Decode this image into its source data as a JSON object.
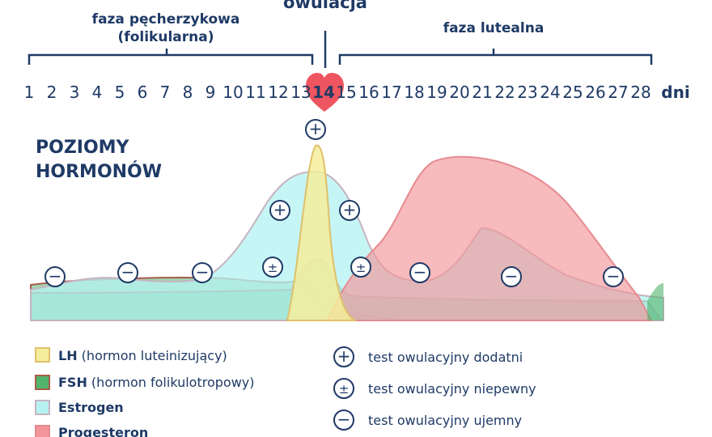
{
  "phases": {
    "follicular_line1": "faza pęcherzykowa",
    "follicular_line2": "(folikularna)",
    "ovulation": "owulacja",
    "luteal": "faza lutealna"
  },
  "days": [
    "1",
    "2",
    "3",
    "4",
    "5",
    "6",
    "7",
    "8",
    "9",
    "10",
    "11",
    "12",
    "13",
    "14",
    "15",
    "16",
    "17",
    "18",
    "19",
    "20",
    "21",
    "22",
    "23",
    "24",
    "25",
    "26",
    "27",
    "28"
  ],
  "days_unit": "dni",
  "ovulation_day": "14",
  "section_title_line1": "POZIOMY",
  "section_title_line2": "HORMONÓW",
  "colors": {
    "lh": "#f4ed9b",
    "fsh": "#52b36b",
    "estrogen": "#b6f2f2",
    "progesterone": "#f3959a",
    "navy": "#1f3a66",
    "heart": "#ef5560"
  },
  "test_markers": [
    {
      "type": "negative",
      "symbol": "−"
    },
    {
      "type": "negative",
      "symbol": "−"
    },
    {
      "type": "negative",
      "symbol": "−"
    },
    {
      "type": "uncertain",
      "symbol": "±"
    },
    {
      "type": "positive",
      "symbol": "+"
    },
    {
      "type": "positive",
      "symbol": "+"
    },
    {
      "type": "positive",
      "symbol": "+"
    },
    {
      "type": "uncertain",
      "symbol": "±"
    },
    {
      "type": "negative",
      "symbol": "−"
    },
    {
      "type": "negative",
      "symbol": "−"
    },
    {
      "type": "negative",
      "symbol": "−"
    }
  ],
  "legend": {
    "hormones": [
      {
        "abbr": "LH",
        "desc": " (hormon luteinizujący)"
      },
      {
        "abbr": "FSH",
        "desc": " (hormon folikulotropowy)"
      },
      {
        "abbr": "Estrogen",
        "desc": ""
      },
      {
        "abbr": "Progesteron",
        "desc": ""
      }
    ],
    "tests": [
      {
        "symbol": "+",
        "label": "test owulacyjny dodatni"
      },
      {
        "symbol": "±",
        "label": "test owulacyjny niepewny"
      },
      {
        "symbol": "−",
        "label": "test owulacyjny ujemny"
      }
    ]
  }
}
